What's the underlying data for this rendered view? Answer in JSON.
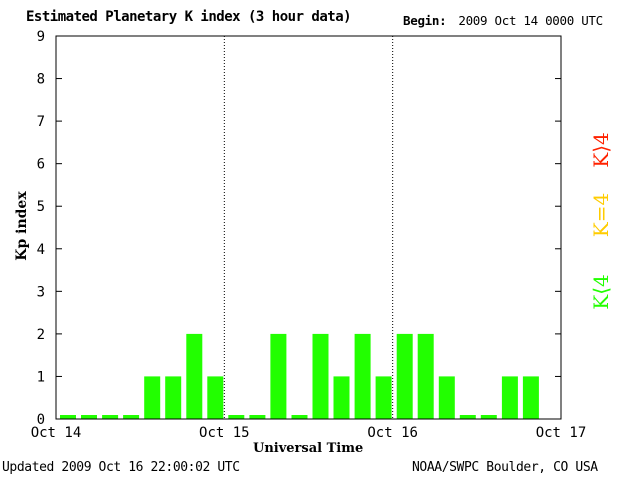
{
  "header": {
    "title": "Estimated Planetary K index (3 hour data)",
    "begin_label": "Begin:",
    "begin_value": "2009 Oct 14 0000 UTC"
  },
  "footer": {
    "updated": "Updated 2009 Oct 16 22:00:02 UTC",
    "source": "NOAA/SWPC Boulder, CO USA"
  },
  "legend": {
    "green_label": "K⟨4",
    "yellow_label": "K=4",
    "red_label": "K⟩4",
    "colors": {
      "below": "#22ff00",
      "equal": "#ffcc00",
      "above": "#ff2200"
    }
  },
  "chart_data": {
    "type": "bar",
    "title": "Estimated Planetary K index (3 hour data)",
    "xlabel": "Universal Time",
    "ylabel": "Kp index",
    "ylim": [
      0,
      9
    ],
    "yticks": [
      "0",
      "1",
      "2",
      "3",
      "4",
      "5",
      "6",
      "7",
      "8",
      "9"
    ],
    "xticks": [
      "Oct 14",
      "Oct 15",
      "Oct 16",
      "Oct 17"
    ],
    "bins_per_day": 8,
    "days": 3,
    "values": [
      0,
      0,
      0,
      0,
      1,
      1,
      2,
      1,
      0,
      0,
      2,
      0,
      2,
      1,
      2,
      1,
      2,
      2,
      1,
      0,
      0,
      1,
      1
    ],
    "grid": "dotted vertical day separators"
  }
}
